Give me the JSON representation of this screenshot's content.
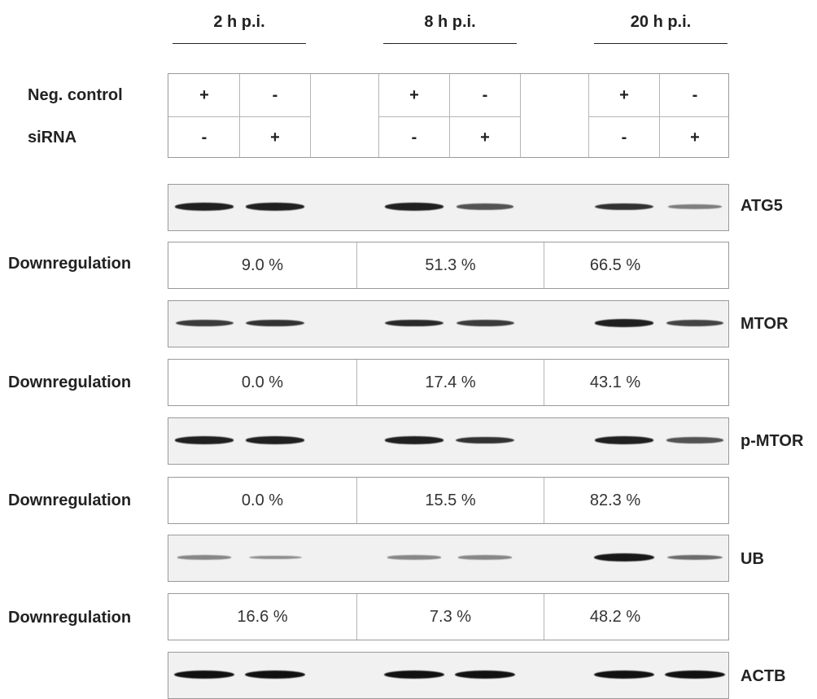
{
  "timepoints": [
    "2 h p.i.",
    "8 h p.i.",
    "20 h p.i."
  ],
  "conditions": {
    "neg_control": {
      "label": "Neg. control",
      "values": [
        "+",
        "-",
        "+",
        "-",
        "+",
        "-"
      ]
    },
    "sirna": {
      "label": "siRNA",
      "values": [
        "-",
        "+",
        "-",
        "+",
        "-",
        "+"
      ]
    }
  },
  "downregulation_label": "Downregulation",
  "blots": [
    {
      "protein": "ATG5",
      "downregulation": [
        "9.0 %",
        "51.3 %",
        "66.5 %"
      ],
      "band_intensity": [
        0.9,
        0.9,
        0.9,
        0.6,
        0.8,
        0.35
      ]
    },
    {
      "protein": "MTOR",
      "downregulation": [
        "0.0 %",
        "17.4 %",
        "43.1 %"
      ],
      "band_intensity": [
        0.75,
        0.8,
        0.85,
        0.75,
        0.9,
        0.7
      ]
    },
    {
      "protein": "p-MTOR",
      "downregulation": [
        "0.0 %",
        "15.5 %",
        "82.3 %"
      ],
      "band_intensity": [
        0.9,
        0.9,
        0.9,
        0.8,
        0.9,
        0.6
      ]
    },
    {
      "protein": "UB",
      "downregulation": [
        "16.6 %",
        "7.3 %",
        "48.2 %"
      ],
      "band_intensity": [
        0.3,
        0.25,
        0.3,
        0.3,
        0.95,
        0.45
      ]
    },
    {
      "protein": "ACTB",
      "downregulation": [],
      "band_intensity": [
        1.0,
        1.0,
        1.0,
        1.0,
        1.0,
        1.0
      ]
    }
  ],
  "colors": {
    "band": "#111111",
    "blot_background": "#f1f1f1",
    "border": "#9a9a9a"
  }
}
